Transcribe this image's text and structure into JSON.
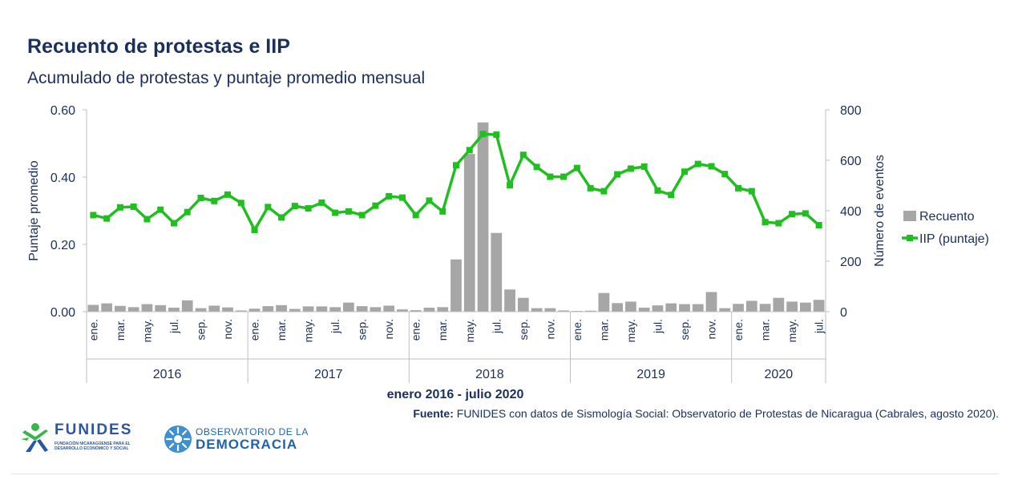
{
  "title": "Recuento de protestas e IIP",
  "subtitle": "Acumulado de protestas y puntaje promedio mensual",
  "source_label": "Fuente:",
  "source_text": "FUNIDES con datos de Sismología Social: Observatorio de Protestas de Nicaragua (Cabrales, agosto 2020).",
  "logos": {
    "funides_word": "FUNIDES",
    "funides_sub": "FUNDACIÓN NICARAGÜENSE PARA EL DESARROLLO ECONÓMICO Y SOCIAL",
    "observatorio_line1": "OBSERVATORIO DE LA",
    "observatorio_line2": "DEMOCRACIA"
  },
  "colors": {
    "title": "#1a2f5c",
    "bars": "#a6a6a6",
    "line": "#1fbf1f",
    "axis": "#bfbfbf"
  },
  "chart_data": {
    "type": "bar+line",
    "xlabel": "enero 2016 - julio 2020",
    "ylabel_left": "Puntaje promedio",
    "ylabel_right": "Número de eventos",
    "ylim_left": [
      0,
      0.6
    ],
    "ylim_right": [
      0,
      800
    ],
    "yticks_left": [
      "0.00",
      "0.20",
      "0.40",
      "0.60"
    ],
    "yticks_right": [
      "0",
      "200",
      "400",
      "600",
      "800"
    ],
    "month_labels": [
      "ene.",
      "",
      "mar.",
      "",
      "may.",
      "",
      "jul.",
      "",
      "sep.",
      "",
      "nov.",
      "",
      "ene.",
      "",
      "mar.",
      "",
      "may.",
      "",
      "jul.",
      "",
      "sep.",
      "",
      "nov.",
      "",
      "ene.",
      "",
      "mar.",
      "",
      "may.",
      "",
      "jul.",
      "",
      "sep.",
      "",
      "nov.",
      "",
      "ene.",
      "",
      "mar.",
      "",
      "may.",
      "",
      "jul.",
      "",
      "sep.",
      "",
      "nov.",
      "",
      "ene.",
      "",
      "mar.",
      "",
      "may.",
      "",
      "jul."
    ],
    "years": [
      {
        "label": "2016",
        "start": 0,
        "count": 12
      },
      {
        "label": "2017",
        "start": 12,
        "count": 12
      },
      {
        "label": "2018",
        "start": 24,
        "count": 12
      },
      {
        "label": "2019",
        "start": 36,
        "count": 12
      },
      {
        "label": "2020",
        "start": 48,
        "count": 7
      }
    ],
    "legend_position": "right",
    "series": [
      {
        "name": "Recuento",
        "type": "bar",
        "axis": "right",
        "values": [
          27,
          33,
          23,
          18,
          30,
          26,
          16,
          45,
          14,
          24,
          17,
          5,
          12,
          22,
          26,
          11,
          21,
          21,
          18,
          36,
          22,
          18,
          24,
          9,
          6,
          16,
          18,
          207,
          625,
          750,
          312,
          88,
          55,
          14,
          14,
          5,
          3,
          4,
          74,
          34,
          40,
          16,
          25,
          33,
          30,
          30,
          78,
          14,
          31,
          43,
          31,
          55,
          40,
          36,
          47
        ]
      },
      {
        "name": "IIP (puntaje)",
        "type": "line",
        "axis": "left",
        "values": [
          0.287,
          0.277,
          0.31,
          0.312,
          0.275,
          0.303,
          0.263,
          0.296,
          0.338,
          0.329,
          0.348,
          0.323,
          0.243,
          0.311,
          0.28,
          0.314,
          0.307,
          0.324,
          0.294,
          0.298,
          0.287,
          0.315,
          0.343,
          0.339,
          0.287,
          0.33,
          0.298,
          0.435,
          0.48,
          0.528,
          0.526,
          0.376,
          0.466,
          0.43,
          0.401,
          0.401,
          0.427,
          0.367,
          0.358,
          0.408,
          0.425,
          0.431,
          0.36,
          0.347,
          0.416,
          0.439,
          0.432,
          0.409,
          0.367,
          0.358,
          0.266,
          0.263,
          0.29,
          0.292,
          0.257
        ]
      }
    ]
  }
}
